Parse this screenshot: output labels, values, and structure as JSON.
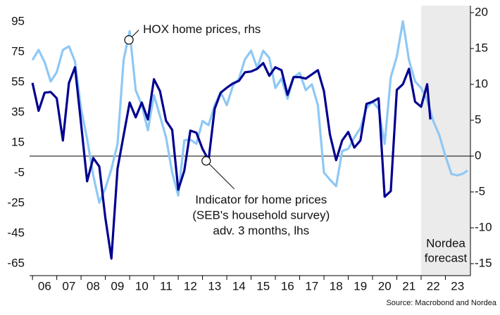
{
  "chart_data": {
    "type": "line",
    "source": "Source: Macrobond and Nordea",
    "xlim": [
      2005.88,
      2024.03
    ],
    "xticks": [
      {
        "value": 2006.5,
        "label": "06"
      },
      {
        "value": 2007.5,
        "label": "07"
      },
      {
        "value": 2008.5,
        "label": "08"
      },
      {
        "value": 2009.5,
        "label": "09"
      },
      {
        "value": 2010.5,
        "label": "10"
      },
      {
        "value": 2011.5,
        "label": "11"
      },
      {
        "value": 2012.5,
        "label": "12"
      },
      {
        "value": 2013.5,
        "label": "13"
      },
      {
        "value": 2014.5,
        "label": "14"
      },
      {
        "value": 2015.5,
        "label": "15"
      },
      {
        "value": 2016.5,
        "label": "16"
      },
      {
        "value": 2017.5,
        "label": "17"
      },
      {
        "value": 2018.5,
        "label": "18"
      },
      {
        "value": 2019.5,
        "label": "19"
      },
      {
        "value": 2020.5,
        "label": "20"
      },
      {
        "value": 2021.5,
        "label": "21"
      },
      {
        "value": 2022.5,
        "label": "22"
      },
      {
        "value": 2023.5,
        "label": "23"
      }
    ],
    "ylim": [
      -73,
      105.6
    ],
    "yticks": [
      95,
      75,
      55,
      35,
      15,
      -5,
      -25,
      -45,
      -65
    ],
    "y2lim": [
      -16.67,
      20.98
    ],
    "y2ticks": [
      20,
      15,
      10,
      5,
      0,
      -5,
      -10,
      -15
    ],
    "reference_line": {
      "axis": "y2",
      "value": 0
    },
    "forecast": {
      "start": 2022.0,
      "label": [
        "Nordea",
        "forecast"
      ],
      "color": "#ebebeb"
    },
    "series": [
      {
        "name": "HOX home prices, rhs",
        "axis": "y2",
        "color": "#8ec8f5",
        "x": [
          2006,
          2006.25,
          2006.5,
          2006.75,
          2007,
          2007.25,
          2007.5,
          2007.75,
          2008,
          2008.25,
          2008.5,
          2008.75,
          2009,
          2009.25,
          2009.5,
          2009.75,
          2010,
          2010.25,
          2010.5,
          2010.75,
          2011,
          2011.25,
          2011.5,
          2011.75,
          2012,
          2012.25,
          2012.5,
          2012.75,
          2013,
          2013.25,
          2013.5,
          2013.75,
          2014,
          2014.25,
          2014.5,
          2014.75,
          2015,
          2015.25,
          2015.5,
          2015.75,
          2016,
          2016.25,
          2016.5,
          2016.75,
          2017,
          2017.25,
          2017.5,
          2017.75,
          2018,
          2018.25,
          2018.5,
          2018.75,
          2019,
          2019.25,
          2019.5,
          2019.75,
          2020,
          2020.25,
          2020.5,
          2020.75,
          2021,
          2021.25,
          2021.5,
          2021.75,
          2022,
          2022.25,
          2022.5,
          2022.75,
          2023,
          2023.25,
          2023.5,
          2023.75,
          2023.91
        ],
        "values": [
          13.4,
          14.8,
          13.1,
          10.4,
          11.7,
          14.8,
          15.3,
          13.2,
          6.6,
          2.4,
          -2.7,
          -6.5,
          -4.5,
          -1.8,
          1.7,
          13.4,
          17.4,
          9.2,
          7.1,
          3.6,
          8.5,
          5.6,
          2.6,
          -2.3,
          -5.5,
          2.2,
          2.3,
          1.7,
          4.9,
          4.3,
          7.1,
          8.9,
          7.1,
          9.8,
          10.8,
          13.5,
          14.7,
          12.3,
          14.7,
          13.7,
          9.5,
          10.8,
          8,
          11,
          11.6,
          9.2,
          10,
          7.1,
          -2.3,
          -3.3,
          -4.2,
          0.7,
          1,
          2.6,
          3.9,
          6.7,
          7.6,
          6.6,
          1.7,
          11,
          13.9,
          18.8,
          13.4,
          10.4,
          9.5,
          7.8,
          4.9,
          2.9,
          0,
          -2.5,
          -2.7,
          -2.4,
          -2
        ]
      },
      {
        "name": "Indicator for home prices",
        "axis": "y",
        "color": "#00008f",
        "x": [
          2006,
          2006.25,
          2006.5,
          2006.75,
          2007,
          2007.25,
          2007.5,
          2007.75,
          2008,
          2008.25,
          2008.5,
          2008.75,
          2009,
          2009.25,
          2009.5,
          2009.75,
          2010,
          2010.25,
          2010.5,
          2010.75,
          2011,
          2011.25,
          2011.5,
          2011.75,
          2012,
          2012.25,
          2012.5,
          2012.75,
          2013,
          2013.25,
          2013.5,
          2013.75,
          2014,
          2014.25,
          2014.5,
          2014.75,
          2015,
          2015.25,
          2015.5,
          2015.75,
          2016,
          2016.25,
          2016.5,
          2016.75,
          2017,
          2017.25,
          2017.5,
          2017.75,
          2018,
          2018.25,
          2018.5,
          2018.75,
          2019,
          2019.25,
          2019.5,
          2019.75,
          2020,
          2020.25,
          2020.5,
          2020.75,
          2021,
          2021.25,
          2021.5,
          2021.75,
          2022,
          2022.25,
          2022.38
        ],
        "values": [
          54.5,
          36,
          48,
          48.5,
          44.3,
          16.4,
          54.5,
          64.8,
          27.6,
          -10.6,
          4.8,
          -0.8,
          -34.8,
          -61.7,
          -2.2,
          19.7,
          41.5,
          31.7,
          41.5,
          30.3,
          56.9,
          49,
          29.4,
          23.4,
          -16.2,
          -3.6,
          22.9,
          21.5,
          10.8,
          3.4,
          37.3,
          48,
          51.3,
          54.1,
          55.9,
          61.5,
          62,
          63.8,
          67.6,
          59.2,
          64.8,
          62.9,
          46.6,
          58.3,
          58.3,
          57.3,
          60.1,
          62.9,
          49,
          20.1,
          3.4,
          16.4,
          22,
          11.7,
          16.4,
          40.6,
          42,
          44.3,
          -20.8,
          -17.1,
          49.9,
          53.6,
          63.8,
          42,
          38.7,
          53.6,
          30.3
        ]
      }
    ],
    "annotations": [
      {
        "lines": [
          "HOX home prices, rhs"
        ],
        "x": 2009.97,
        "y": 16.2,
        "axis": "y2"
      },
      {
        "lines": [
          "Indicator for home prices",
          "(SEB's household survey)",
          "adv. 3 months, lhs"
        ],
        "x": 2013.15,
        "y": 2.9,
        "axis": "y"
      }
    ]
  }
}
